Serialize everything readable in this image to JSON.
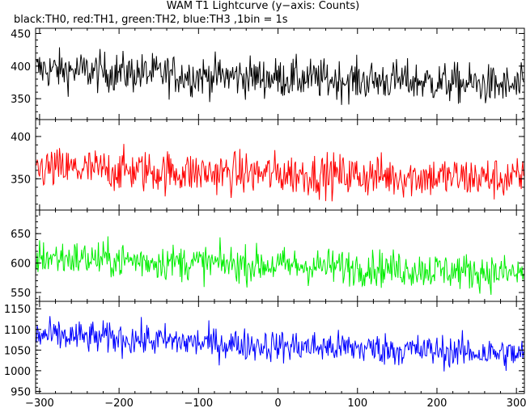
{
  "header": {
    "title": "WAM T1 Lightcurve (y−axis: Counts)",
    "subtitle": "black:TH0, red:TH1, green:TH2, blue:TH3 ,1bin = 1s"
  },
  "chart_data": [
    {
      "type": "line",
      "series": [
        {
          "name": "TH0",
          "color": "#000000"
        }
      ],
      "x_range": [
        -305,
        310
      ],
      "ylim": [
        318,
        458
      ],
      "yticks": [
        350,
        400,
        450
      ],
      "ytick_labels": [
        "350",
        "400",
        "450"
      ],
      "profile_x": [
        -300,
        -240,
        -150,
        -100,
        -50,
        0,
        50,
        100,
        150,
        200,
        250,
        300
      ],
      "profile_mean": [
        395,
        392,
        388,
        385,
        384,
        382,
        380,
        378,
        378,
        375,
        372,
        368
      ],
      "noise_amplitude": 22
    },
    {
      "type": "line",
      "series": [
        {
          "name": "TH1",
          "color": "#ff0000"
        }
      ],
      "x_range": [
        -305,
        310
      ],
      "ylim": [
        313,
        420
      ],
      "yticks": [
        350,
        400
      ],
      "ytick_labels": [
        "350",
        "400"
      ],
      "profile_x": [
        -300,
        -200,
        -100,
        0,
        100,
        200,
        300
      ],
      "profile_mean": [
        362,
        360,
        357,
        356,
        354,
        352,
        350
      ],
      "noise_amplitude": 18
    },
    {
      "type": "line",
      "series": [
        {
          "name": "TH2",
          "color": "#00ee00"
        }
      ],
      "x_range": [
        -305,
        310
      ],
      "ylim": [
        535,
        690
      ],
      "yticks": [
        550,
        600,
        650
      ],
      "ytick_labels": [
        "550",
        "600",
        "650"
      ],
      "profile_x": [
        -300,
        -200,
        -100,
        0,
        100,
        200,
        300
      ],
      "profile_mean": [
        610,
        605,
        600,
        596,
        593,
        588,
        582
      ],
      "noise_amplitude": 22
    },
    {
      "type": "line",
      "series": [
        {
          "name": "TH3",
          "color": "#0000ff"
        }
      ],
      "x_range": [
        -305,
        310
      ],
      "ylim": [
        945,
        1168
      ],
      "yticks": [
        950,
        1000,
        1050,
        1100,
        1150
      ],
      "ytick_labels": [
        "950",
        "1000",
        "1050",
        "1100",
        "1150"
      ],
      "xticks": [
        -300,
        -200,
        -100,
        0,
        100,
        200,
        300
      ],
      "xtick_labels": [
        "−300",
        "−200",
        "−100",
        "0",
        "100",
        "200",
        "300"
      ],
      "profile_x": [
        -300,
        -200,
        -100,
        0,
        100,
        200,
        300
      ],
      "profile_mean": [
        1085,
        1078,
        1068,
        1060,
        1055,
        1048,
        1040
      ],
      "noise_amplitude": 28
    }
  ]
}
